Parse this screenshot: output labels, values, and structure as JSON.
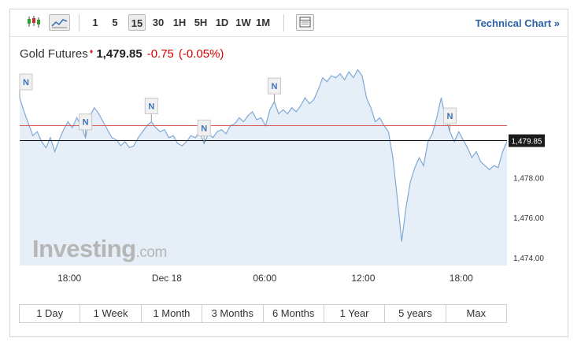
{
  "toolbar": {
    "intervals": [
      "1",
      "5",
      "15",
      "30",
      "1H",
      "5H",
      "1D",
      "1W",
      "1M"
    ],
    "active_interval": "15",
    "technical_chart_label": "Technical Chart »"
  },
  "quote": {
    "name": "Gold Futures",
    "price": "1,479.85",
    "change": "-0.75",
    "change_pct": "(-0.05%)"
  },
  "watermark": {
    "main": "Investing",
    "suffix": ".com"
  },
  "timeframes": [
    "1 Day",
    "1 Week",
    "1 Month",
    "3 Months",
    "6 Months",
    "1 Year",
    "5 years",
    "Max"
  ],
  "colors": {
    "line": "#7fa9d6",
    "area": "#e6eef7",
    "prev_close": "#d9534f",
    "last_price_line": "#000000",
    "price_tag_bg": "#1a1a1a",
    "negative": "#d60000",
    "link": "#2b62a3"
  },
  "chart_data": {
    "type": "area",
    "title": "Gold Futures",
    "x_ticks": [
      "18:00",
      "Dec 18",
      "06:00",
      "12:00",
      "18:00"
    ],
    "y_ticks": [
      "1,478.00",
      "1,476.00",
      "1,474.00"
    ],
    "ylim": [
      1473.6,
      1483.5
    ],
    "last_price": 1479.85,
    "last_price_label": "1,479.85",
    "reference_line": 1480.6,
    "grid": false,
    "series": [
      {
        "values": [
          1482.0,
          1481.3,
          1480.7,
          1480.1,
          1480.3,
          1479.8,
          1479.5,
          1480.0,
          1479.3,
          1479.9,
          1480.4,
          1480.8,
          1480.5,
          1481.0,
          1480.6,
          1480.0,
          1481.1,
          1481.5,
          1481.2,
          1480.8,
          1480.4,
          1480.0,
          1479.9,
          1479.6,
          1479.8,
          1479.5,
          1479.6,
          1480.0,
          1480.3,
          1480.6,
          1480.8,
          1480.5,
          1480.3,
          1480.4,
          1480.0,
          1480.1,
          1479.7,
          1479.6,
          1479.8,
          1480.1,
          1480.0,
          1480.3,
          1479.7,
          1480.2,
          1480.0,
          1480.3,
          1480.4,
          1480.2,
          1480.6,
          1480.7,
          1481.0,
          1480.8,
          1481.1,
          1481.3,
          1480.9,
          1481.0,
          1480.6,
          1481.4,
          1481.8,
          1481.2,
          1481.4,
          1481.2,
          1481.5,
          1481.3,
          1481.6,
          1482.0,
          1481.7,
          1481.9,
          1482.4,
          1483.0,
          1482.8,
          1483.1,
          1483.0,
          1483.2,
          1482.9,
          1483.3,
          1483.0,
          1483.4,
          1483.1,
          1482.0,
          1481.5,
          1480.8,
          1481.0,
          1480.6,
          1480.3,
          1479.0,
          1477.0,
          1474.8,
          1476.5,
          1477.8,
          1478.5,
          1479.0,
          1478.6,
          1479.8,
          1480.2,
          1481.0,
          1482.0,
          1481.0,
          1480.3,
          1479.8,
          1480.3,
          1479.9,
          1479.5,
          1479.0,
          1479.3,
          1478.8,
          1478.6,
          1478.4,
          1478.6,
          1478.5,
          1479.3,
          1479.8
        ]
      }
    ],
    "news_markers": [
      {
        "label": "N",
        "index": 0
      },
      {
        "label": "N",
        "index": 15
      },
      {
        "label": "N",
        "index": 30
      },
      {
        "label": "N",
        "index": 42
      },
      {
        "label": "N",
        "index": 58
      },
      {
        "label": "N",
        "index": 98
      }
    ]
  }
}
